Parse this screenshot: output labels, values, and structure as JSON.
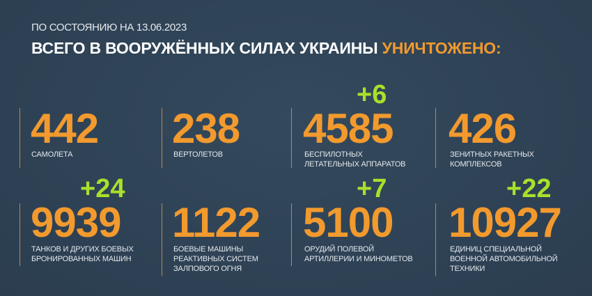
{
  "header": {
    "date_line": "ПО СОСТОЯНИЮ НА 13.06.2023",
    "title_main": "ВСЕГО В ВООРУЖЁННЫХ СИЛАХ УКРАИНЫ",
    "title_accent": "УНИЧТОЖЕНО:"
  },
  "colors": {
    "background": "#304356",
    "number": "#f29a2e",
    "delta": "#a8e12c",
    "text": "#ffffff"
  },
  "stats": [
    {
      "value": "442",
      "label_lines": [
        "САМОЛЕТА"
      ],
      "delta": ""
    },
    {
      "value": "238",
      "label_lines": [
        "ВЕРТОЛЕТОВ"
      ],
      "delta": ""
    },
    {
      "value": "4585",
      "label_lines": [
        "БЕСПИЛОТНЫХ",
        "ЛЕТАТЕЛЬНЫХ АППАРАТОВ"
      ],
      "delta": "+6"
    },
    {
      "value": "426",
      "label_lines": [
        "ЗЕНИТНЫХ РАКЕТНЫХ",
        "КОМПЛЕКСОВ"
      ],
      "delta": ""
    },
    {
      "value": "9939",
      "label_lines": [
        "ТАНКОВ И ДРУГИХ БОЕВЫХ",
        "БРОНИРОВАННЫХ МАШИН"
      ],
      "delta": "+24"
    },
    {
      "value": "1122",
      "label_lines": [
        "БОЕВЫЕ МАШИНЫ",
        "РЕАКТИВНЫХ СИСТЕМ",
        "ЗАЛПОВОГО ОГНЯ"
      ],
      "delta": ""
    },
    {
      "value": "5100",
      "label_lines": [
        "ОРУДИЙ ПОЛЕВОЙ",
        "АРТИЛЛЕРИИ И МИНОМЕТОВ"
      ],
      "delta": "+7"
    },
    {
      "value": "10927",
      "label_lines": [
        "ЕДИНИЦ СПЕЦИАЛЬНОЙ",
        "ВОЕННОЙ АВТОМОБИЛЬНОЙ",
        "ТЕХНИКИ"
      ],
      "delta": "+22"
    }
  ]
}
